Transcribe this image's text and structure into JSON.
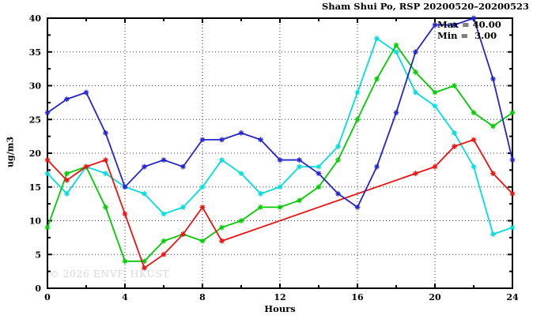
{
  "chart_data": {
    "type": "line",
    "title": "Sham Shui Po, RSP 20200520–20200523",
    "xlabel": "Hours",
    "ylabel": "ug/m3",
    "xlim": [
      0,
      24
    ],
    "ylim": [
      0,
      40
    ],
    "xticks": [
      0,
      4,
      8,
      12,
      16,
      20,
      24
    ],
    "xticks_minor": [
      2,
      6,
      10,
      14,
      18,
      22
    ],
    "yticks": [
      0,
      5,
      10,
      15,
      20,
      25,
      30,
      35,
      40
    ],
    "yticks_minor": [
      2.5,
      7.5,
      12.5,
      17.5,
      22.5,
      27.5,
      32.5,
      37.5
    ],
    "grid": "dotted-at-major-ticks",
    "legend_position": "none",
    "marker": "asterisk",
    "annotation": {
      "max_label": "Max = 40.00",
      "min_label": "Min =  3.00"
    },
    "watermark": "© 2026 ENVF, HKUST",
    "series": [
      {
        "name": "series-cyan",
        "color": "#00dddd",
        "x": [
          0,
          1,
          2,
          3,
          4,
          5,
          6,
          7,
          8,
          9,
          10,
          11,
          12,
          13,
          14,
          15,
          16,
          17,
          18,
          19,
          20,
          21,
          22,
          23,
          24
        ],
        "values": [
          17,
          14,
          18,
          17,
          15,
          14,
          11,
          12,
          15,
          19,
          17,
          14,
          15,
          18,
          18,
          21,
          29,
          37,
          35,
          29,
          27,
          23,
          18,
          8,
          9
        ]
      },
      {
        "name": "series-green",
        "color": "#00cc00",
        "x": [
          0,
          1,
          2,
          3,
          4,
          5,
          6,
          7,
          8,
          9,
          10,
          11,
          12,
          13,
          14,
          15,
          16,
          17,
          18,
          19,
          20,
          21,
          22,
          23,
          24
        ],
        "values": [
          9,
          17,
          18,
          12,
          4,
          4,
          7,
          8,
          7,
          9,
          10,
          12,
          12,
          13,
          15,
          19,
          25,
          31,
          36,
          32,
          29,
          30,
          26,
          24,
          26
        ]
      },
      {
        "name": "series-red",
        "color": "#ee1111",
        "x": [
          0,
          1,
          2,
          3,
          4,
          5,
          6,
          7,
          8,
          9,
          19,
          20,
          21,
          22,
          23,
          24
        ],
        "values": [
          19,
          16,
          18,
          19,
          11,
          3,
          5,
          8,
          12,
          7,
          17,
          18,
          21,
          22,
          17,
          14
        ]
      },
      {
        "name": "series-blue",
        "color": "#2424cf",
        "x": [
          0,
          1,
          2,
          3,
          4,
          5,
          6,
          7,
          8,
          9,
          10,
          11,
          12,
          13,
          14,
          15,
          16,
          17,
          18,
          19,
          20,
          21,
          22,
          23,
          24
        ],
        "values": [
          26,
          28,
          29,
          23,
          15,
          18,
          19,
          18,
          22,
          22,
          23,
          22,
          19,
          19,
          17,
          14,
          12,
          18,
          26,
          35,
          39,
          39,
          40,
          31,
          19
        ]
      }
    ]
  }
}
